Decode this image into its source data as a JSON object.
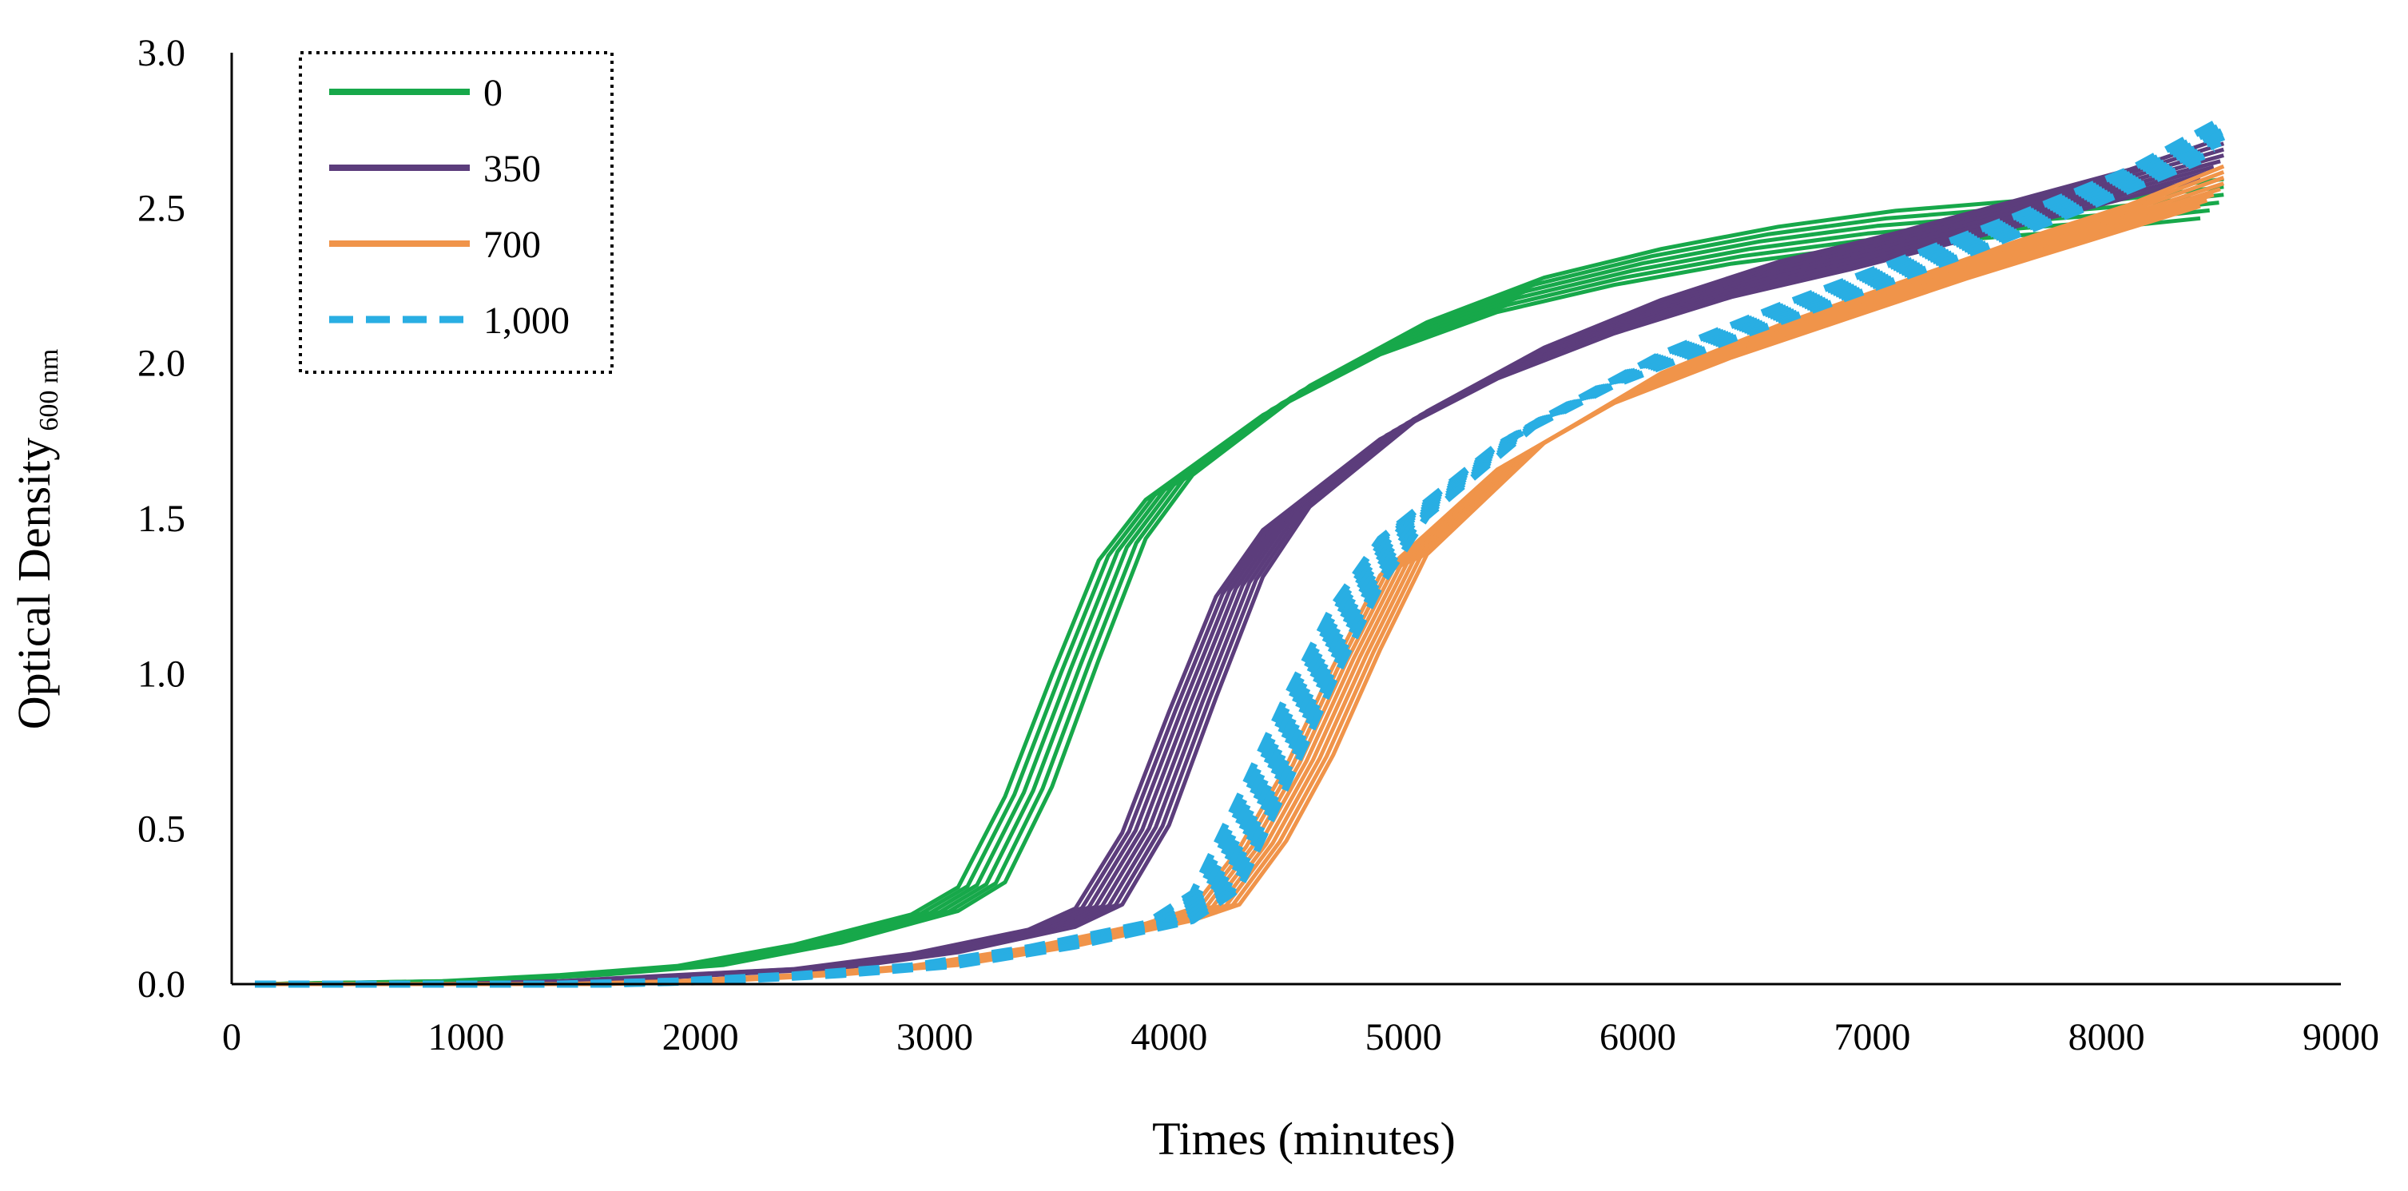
{
  "chart_data": {
    "type": "line",
    "title": "",
    "xlabel": "Times (minutes)",
    "ylabel": "Optical Density",
    "ylabel_subscript": "600 nm",
    "xlim": [
      0,
      9000
    ],
    "ylim": [
      0,
      3.0
    ],
    "x_ticks": [
      "0",
      "1000",
      "2000",
      "3000",
      "4000",
      "5000",
      "6000",
      "7000",
      "8000",
      "9000"
    ],
    "y_ticks": [
      "0.0",
      "0.5",
      "1.0",
      "1.5",
      "2.0",
      "2.5",
      "3.0"
    ],
    "grid": false,
    "legend_position": "top-left",
    "legend_border": "dotted",
    "series": [
      {
        "name": "0",
        "color": "#17a84a",
        "dash": "solid",
        "replicates": 6,
        "x": [
          100,
          1000,
          1500,
          2000,
          2500,
          3000,
          3200,
          3400,
          3600,
          3800,
          4000,
          4500,
          5000,
          5500,
          6000,
          6500,
          7000,
          7500,
          8000,
          8500
        ],
        "values": [
          0.0,
          0.01,
          0.03,
          0.06,
          0.13,
          0.23,
          0.32,
          0.62,
          1.02,
          1.4,
          1.6,
          1.88,
          2.08,
          2.22,
          2.31,
          2.38,
          2.43,
          2.46,
          2.49,
          2.53
        ]
      },
      {
        "name": "350",
        "color": "#5c3d7c",
        "dash": "solid",
        "replicates": 8,
        "x": [
          100,
          1000,
          1500,
          2000,
          2500,
          3000,
          3500,
          3700,
          3900,
          4100,
          4300,
          4500,
          5000,
          5500,
          6000,
          6500,
          7000,
          7500,
          8000,
          8500
        ],
        "values": [
          0.0,
          0.0,
          0.01,
          0.03,
          0.05,
          0.1,
          0.18,
          0.25,
          0.5,
          0.9,
          1.28,
          1.5,
          1.8,
          2.0,
          2.15,
          2.27,
          2.36,
          2.46,
          2.56,
          2.66
        ]
      },
      {
        "name": "700",
        "color": "#f0944a",
        "dash": "solid",
        "replicates": 8,
        "x": [
          100,
          1000,
          1500,
          2000,
          2500,
          3000,
          3500,
          4000,
          4200,
          4400,
          4600,
          4800,
          5000,
          5500,
          6000,
          6500,
          7000,
          7500,
          8000,
          8500
        ],
        "values": [
          0.0,
          0.0,
          0.0,
          0.01,
          0.03,
          0.06,
          0.12,
          0.2,
          0.25,
          0.45,
          0.72,
          1.05,
          1.35,
          1.7,
          1.92,
          2.07,
          2.2,
          2.33,
          2.45,
          2.57
        ]
      },
      {
        "name": "1,000",
        "color": "#29aee3",
        "dash": "dashed",
        "replicates": 8,
        "x": [
          100,
          1000,
          1500,
          2000,
          2500,
          3000,
          3500,
          4000,
          4200,
          4400,
          4600,
          4800,
          5000,
          5500,
          6000,
          6500,
          7000,
          7500,
          8000,
          8500
        ],
        "values": [
          0.0,
          0.0,
          0.0,
          0.01,
          0.03,
          0.06,
          0.12,
          0.2,
          0.3,
          0.62,
          0.95,
          1.25,
          1.47,
          1.78,
          1.98,
          2.13,
          2.27,
          2.41,
          2.56,
          2.72
        ]
      }
    ]
  }
}
